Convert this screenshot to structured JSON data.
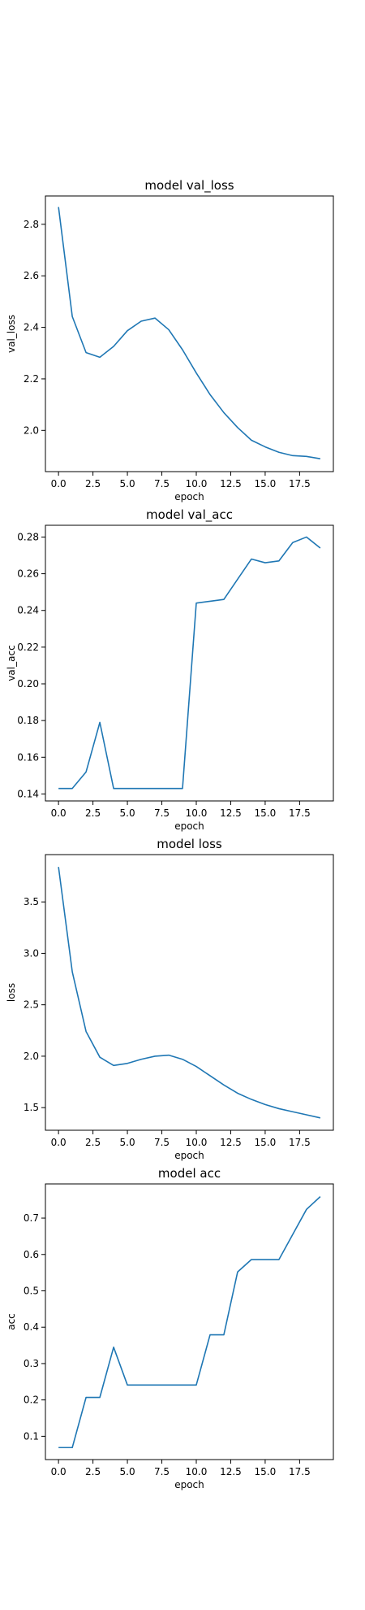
{
  "chart_data": [
    {
      "type": "line",
      "title": "model val_loss",
      "xlabel": "epoch",
      "ylabel": "val_loss",
      "xlim": [
        -0.95,
        19.95
      ],
      "ylim": [
        1.84,
        2.91
      ],
      "xticks": [
        0,
        2.5,
        5,
        7.5,
        10,
        12.5,
        15,
        17.5
      ],
      "xtick_labels": [
        "0.0",
        "2.5",
        "5.0",
        "7.5",
        "10.0",
        "12.5",
        "15.0",
        "17.5"
      ],
      "yticks": [
        2.0,
        2.2,
        2.4,
        2.6,
        2.8
      ],
      "ytick_labels": [
        "2.0",
        "2.2",
        "2.4",
        "2.6",
        "2.8"
      ],
      "grid": false,
      "series": [
        {
          "color": "#1f77b4",
          "x": [
            0,
            1,
            2,
            3,
            4,
            5,
            6,
            7,
            8,
            9,
            10,
            11,
            12,
            13,
            14,
            15,
            16,
            17,
            18,
            19
          ],
          "values": [
            2.867,
            2.442,
            2.302,
            2.284,
            2.326,
            2.387,
            2.424,
            2.436,
            2.391,
            2.313,
            2.223,
            2.139,
            2.069,
            2.011,
            1.962,
            1.936,
            1.915,
            1.902,
            1.899,
            1.89
          ]
        }
      ]
    },
    {
      "type": "line",
      "title": "model val_acc",
      "xlabel": "epoch",
      "ylabel": "val_acc",
      "xlim": [
        -0.95,
        19.95
      ],
      "ylim": [
        0.1362,
        0.2864
      ],
      "xticks": [
        0,
        2.5,
        5,
        7.5,
        10,
        12.5,
        15,
        17.5
      ],
      "xtick_labels": [
        "0.0",
        "2.5",
        "5.0",
        "7.5",
        "10.0",
        "12.5",
        "15.0",
        "17.5"
      ],
      "yticks": [
        0.14,
        0.16,
        0.18,
        0.2,
        0.22,
        0.24,
        0.26,
        0.28
      ],
      "ytick_labels": [
        "0.14",
        "0.16",
        "0.18",
        "0.20",
        "0.22",
        "0.24",
        "0.26",
        "0.28"
      ],
      "grid": false,
      "series": [
        {
          "color": "#1f77b4",
          "x": [
            0,
            1,
            2,
            3,
            4,
            5,
            6,
            7,
            8,
            9,
            10,
            11,
            12,
            13,
            14,
            15,
            16,
            17,
            18,
            19
          ],
          "values": [
            0.143,
            0.143,
            0.152,
            0.179,
            0.143,
            0.143,
            0.143,
            0.143,
            0.143,
            0.143,
            0.244,
            0.245,
            0.246,
            0.257,
            0.268,
            0.266,
            0.267,
            0.277,
            0.28,
            0.274
          ]
        }
      ]
    },
    {
      "type": "line",
      "title": "model loss",
      "xlabel": "epoch",
      "ylabel": "loss",
      "xlim": [
        -0.95,
        19.95
      ],
      "ylim": [
        1.28,
        3.96
      ],
      "xticks": [
        0,
        2.5,
        5,
        7.5,
        10,
        12.5,
        15,
        17.5
      ],
      "xtick_labels": [
        "0.0",
        "2.5",
        "5.0",
        "7.5",
        "10.0",
        "12.5",
        "15.0",
        "17.5"
      ],
      "yticks": [
        1.5,
        2.0,
        2.5,
        3.0,
        3.5
      ],
      "ytick_labels": [
        "1.5",
        "2.0",
        "2.5",
        "3.0",
        "3.5"
      ],
      "grid": false,
      "series": [
        {
          "color": "#1f77b4",
          "x": [
            0,
            1,
            2,
            3,
            4,
            5,
            6,
            7,
            8,
            9,
            10,
            11,
            12,
            13,
            14,
            15,
            16,
            17,
            18,
            19
          ],
          "values": [
            3.84,
            2.82,
            2.24,
            1.99,
            1.91,
            1.93,
            1.97,
            2.0,
            2.01,
            1.97,
            1.9,
            1.81,
            1.72,
            1.64,
            1.58,
            1.53,
            1.49,
            1.46,
            1.43,
            1.4
          ]
        }
      ]
    },
    {
      "type": "line",
      "title": "model acc",
      "xlabel": "epoch",
      "ylabel": "acc",
      "xlim": [
        -0.95,
        19.95
      ],
      "ylim": [
        0.036,
        0.794
      ],
      "xticks": [
        0,
        2.5,
        5,
        7.5,
        10,
        12.5,
        15,
        17.5
      ],
      "xtick_labels": [
        "0.0",
        "2.5",
        "5.0",
        "7.5",
        "10.0",
        "12.5",
        "15.0",
        "17.5"
      ],
      "yticks": [
        0.1,
        0.2,
        0.3,
        0.4,
        0.5,
        0.6,
        0.7
      ],
      "ytick_labels": [
        "0.1",
        "0.2",
        "0.3",
        "0.4",
        "0.5",
        "0.6",
        "0.7"
      ],
      "grid": false,
      "series": [
        {
          "color": "#1f77b4",
          "x": [
            0,
            1,
            2,
            3,
            4,
            5,
            6,
            7,
            8,
            9,
            10,
            11,
            12,
            13,
            14,
            15,
            16,
            17,
            18,
            19
          ],
          "values": [
            0.069,
            0.069,
            0.207,
            0.207,
            0.345,
            0.241,
            0.241,
            0.241,
            0.241,
            0.241,
            0.241,
            0.379,
            0.379,
            0.552,
            0.586,
            0.586,
            0.586,
            0.655,
            0.724,
            0.759
          ]
        }
      ]
    }
  ]
}
